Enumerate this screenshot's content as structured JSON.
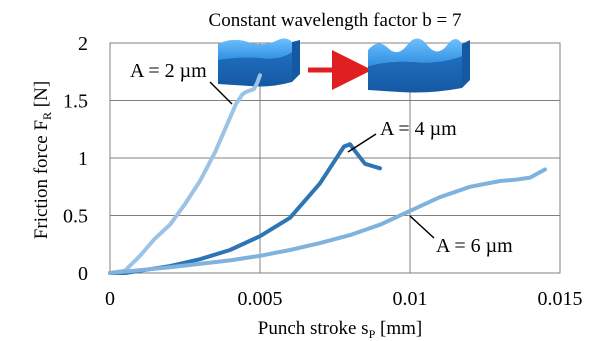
{
  "chart_data": {
    "type": "line",
    "title": "Constant wavelength factor b = 7",
    "xlabel": {
      "main": "Punch stroke s",
      "sub": "P",
      "unit": " [mm]"
    },
    "ylabel": {
      "main": "Friction force F",
      "sub": "R",
      "unit": " [N]"
    },
    "xlim": [
      0,
      0.015
    ],
    "ylim": [
      0,
      2
    ],
    "xticks": [
      0,
      0.005,
      0.01,
      0.015
    ],
    "xtick_labels": [
      "0",
      "0.005",
      "0.01",
      "0.015"
    ],
    "yticks": [
      0,
      0.5,
      1,
      1.5,
      2
    ],
    "ytick_labels": [
      "0",
      "0.5",
      "1",
      "1.5",
      "2"
    ],
    "grid": true,
    "legend": "none",
    "series": [
      {
        "name": "A = 2 µm",
        "color": "#9cc3e6",
        "x": [
          0.0,
          0.0005,
          0.001,
          0.0015,
          0.002,
          0.0025,
          0.003,
          0.0035,
          0.004,
          0.0042,
          0.0044,
          0.0045,
          0.0046,
          0.0048,
          0.0049,
          0.005
        ],
        "y": [
          0.0,
          0.02,
          0.15,
          0.3,
          0.42,
          0.6,
          0.8,
          1.05,
          1.35,
          1.47,
          1.55,
          1.57,
          1.58,
          1.6,
          1.65,
          1.72
        ]
      },
      {
        "name": "A = 4 µm",
        "color": "#2e75b6",
        "x": [
          0.0,
          0.0005,
          0.001,
          0.002,
          0.003,
          0.004,
          0.005,
          0.006,
          0.007,
          0.0075,
          0.0078,
          0.008,
          0.0082,
          0.0085,
          0.009
        ],
        "y": [
          0.0,
          0.0,
          0.02,
          0.06,
          0.12,
          0.2,
          0.32,
          0.48,
          0.78,
          0.98,
          1.1,
          1.12,
          1.05,
          0.95,
          0.91
        ]
      },
      {
        "name": "A = 6 µm",
        "color": "#7fb2dc",
        "x": [
          0.0,
          0.002,
          0.004,
          0.005,
          0.006,
          0.007,
          0.008,
          0.009,
          0.01,
          0.011,
          0.012,
          0.013,
          0.0135,
          0.014,
          0.0145
        ],
        "y": [
          0.0,
          0.05,
          0.11,
          0.15,
          0.2,
          0.26,
          0.33,
          0.42,
          0.54,
          0.66,
          0.75,
          0.8,
          0.81,
          0.83,
          0.9
        ]
      }
    ],
    "annotations": [
      {
        "text": "A = 2 µm",
        "series": 0
      },
      {
        "text": "A = 4 µm",
        "series": 1
      },
      {
        "text": "A = 6 µm",
        "series": 2
      }
    ]
  },
  "inset": {
    "surface_before": "flat-surface-block",
    "arrow": "red-arrow-right",
    "surface_after": "wavy-surface-block",
    "block_color": "#2f8fe0",
    "arrow_color": "#e02020"
  }
}
